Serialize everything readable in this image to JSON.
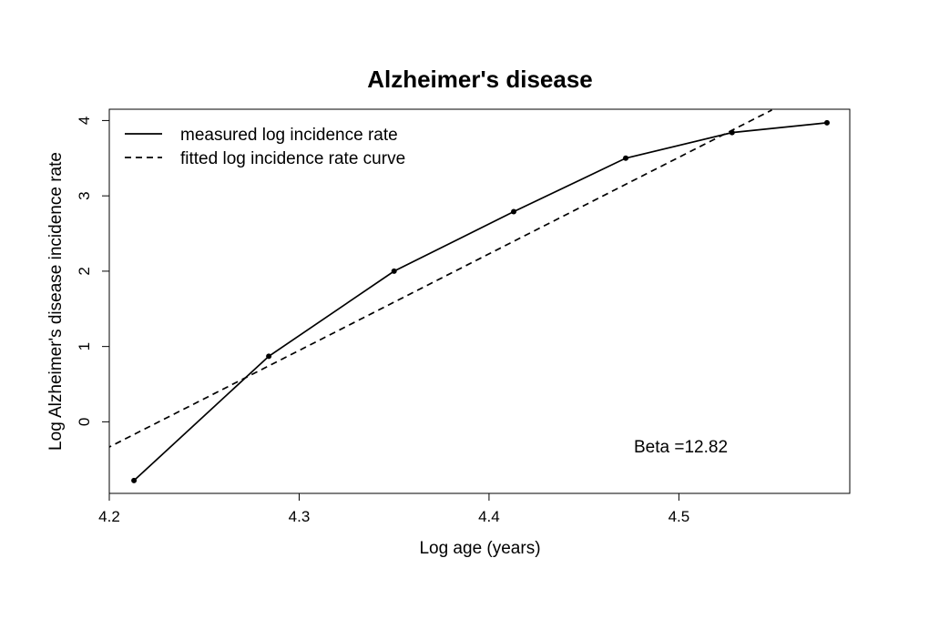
{
  "chart_data": {
    "type": "line",
    "title": "Alzheimer's disease",
    "xlabel": "Log age (years)",
    "ylabel": "Log Alzheimer's disease incidence rate",
    "xlim": [
      4.2,
      4.59
    ],
    "ylim": [
      -0.95,
      4.15
    ],
    "x_ticks": [
      4.2,
      4.3,
      4.4,
      4.5
    ],
    "x_tick_labels": [
      "4.2",
      "4.3",
      "4.4",
      "4.5"
    ],
    "y_ticks": [
      0,
      1,
      2,
      3,
      4
    ],
    "y_tick_labels": [
      "0",
      "1",
      "2",
      "3",
      "4"
    ],
    "grid": false,
    "legend_position": "top-left",
    "series": [
      {
        "name": "measured log incidence rate",
        "style": "solid",
        "markers": true,
        "x": [
          4.213,
          4.284,
          4.35,
          4.413,
          4.472,
          4.528,
          4.578
        ],
        "y": [
          -0.78,
          0.87,
          2.0,
          2.79,
          3.5,
          3.84,
          3.97
        ]
      },
      {
        "name": "fitted log incidence rate curve",
        "style": "dashed",
        "markers": false,
        "x": [
          4.198,
          4.549
        ],
        "y": [
          -0.36,
          4.14
        ]
      }
    ],
    "annotations": [
      {
        "text": "Beta =12.82",
        "x": 4.495,
        "y": -0.33
      }
    ]
  }
}
